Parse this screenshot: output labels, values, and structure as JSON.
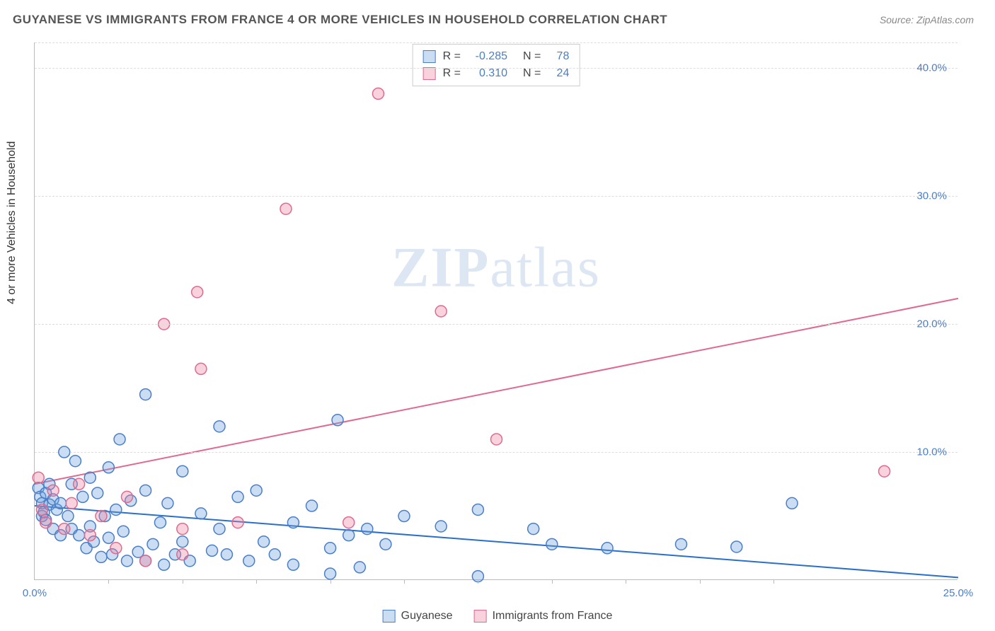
{
  "title": "GUYANESE VS IMMIGRANTS FROM FRANCE 4 OR MORE VEHICLES IN HOUSEHOLD CORRELATION CHART",
  "source": "Source: ZipAtlas.com",
  "y_axis_label": "4 or more Vehicles in Household",
  "watermark": {
    "part1": "ZIP",
    "part2": "atlas"
  },
  "chart": {
    "type": "scatter",
    "background_color": "#ffffff",
    "grid_color": "#dddddd",
    "axis_color": "#bbbbbb",
    "label_color": "#4a7ec9",
    "xlim": [
      0,
      25
    ],
    "ylim": [
      0,
      42
    ],
    "x_ticks": [
      0,
      25
    ],
    "x_minor_ticks": [
      2,
      4,
      6,
      8,
      10,
      12,
      14,
      16,
      18,
      20
    ],
    "y_ticks": [
      10,
      20,
      30,
      40
    ],
    "x_tick_labels": [
      "0.0%",
      "25.0%"
    ],
    "y_tick_labels": [
      "10.0%",
      "20.0%",
      "30.0%",
      "40.0%"
    ],
    "marker_radius": 8,
    "marker_stroke_width": 1.5,
    "line_width": 2,
    "series": [
      {
        "name": "Guyanese",
        "fill": "rgba(106,158,218,0.35)",
        "stroke": "#4a7ec9",
        "line_color": "#2a6fc9",
        "R": -0.285,
        "N": 78,
        "trend": {
          "x1": 0,
          "y1": 5.8,
          "x2": 25,
          "y2": 0.2
        },
        "points": [
          [
            0.1,
            7.2
          ],
          [
            0.15,
            6.5
          ],
          [
            0.2,
            6.0
          ],
          [
            0.2,
            5.0
          ],
          [
            0.25,
            5.3
          ],
          [
            0.3,
            6.8
          ],
          [
            0.3,
            4.7
          ],
          [
            0.4,
            7.5
          ],
          [
            0.4,
            5.9
          ],
          [
            0.5,
            6.3
          ],
          [
            0.5,
            4.0
          ],
          [
            0.6,
            5.5
          ],
          [
            0.7,
            6.0
          ],
          [
            0.7,
            3.5
          ],
          [
            0.8,
            10.0
          ],
          [
            0.9,
            5.0
          ],
          [
            1.0,
            7.5
          ],
          [
            1.0,
            4.0
          ],
          [
            1.1,
            9.3
          ],
          [
            1.2,
            3.5
          ],
          [
            1.3,
            6.5
          ],
          [
            1.4,
            2.5
          ],
          [
            1.5,
            8.0
          ],
          [
            1.5,
            4.2
          ],
          [
            1.6,
            3.0
          ],
          [
            1.7,
            6.8
          ],
          [
            1.8,
            1.8
          ],
          [
            1.9,
            5.0
          ],
          [
            2.0,
            8.8
          ],
          [
            2.0,
            3.3
          ],
          [
            2.1,
            2.0
          ],
          [
            2.2,
            5.5
          ],
          [
            2.3,
            11.0
          ],
          [
            2.4,
            3.8
          ],
          [
            2.5,
            1.5
          ],
          [
            2.6,
            6.2
          ],
          [
            2.8,
            2.2
          ],
          [
            3.0,
            7.0
          ],
          [
            3.0,
            14.5
          ],
          [
            3.2,
            2.8
          ],
          [
            3.4,
            4.5
          ],
          [
            3.5,
            1.2
          ],
          [
            3.6,
            6.0
          ],
          [
            3.8,
            2.0
          ],
          [
            4.0,
            8.5
          ],
          [
            4.0,
            3.0
          ],
          [
            4.2,
            1.5
          ],
          [
            4.5,
            5.2
          ],
          [
            4.8,
            2.3
          ],
          [
            5.0,
            12.0
          ],
          [
            5.0,
            4.0
          ],
          [
            5.2,
            2.0
          ],
          [
            5.5,
            6.5
          ],
          [
            5.8,
            1.5
          ],
          [
            6.0,
            7.0
          ],
          [
            6.2,
            3.0
          ],
          [
            6.5,
            2.0
          ],
          [
            7.0,
            4.5
          ],
          [
            7.0,
            1.2
          ],
          [
            7.5,
            5.8
          ],
          [
            8.0,
            2.5
          ],
          [
            8.2,
            12.5
          ],
          [
            8.5,
            3.5
          ],
          [
            8.8,
            1.0
          ],
          [
            9.0,
            4.0
          ],
          [
            9.5,
            2.8
          ],
          [
            10.0,
            5.0
          ],
          [
            11.0,
            4.2
          ],
          [
            12.0,
            5.5
          ],
          [
            13.5,
            4.0
          ],
          [
            14.0,
            2.8
          ],
          [
            15.5,
            2.5
          ],
          [
            17.5,
            2.8
          ],
          [
            19.0,
            2.6
          ],
          [
            20.5,
            6.0
          ],
          [
            8.0,
            0.5
          ],
          [
            12.0,
            0.3
          ],
          [
            3.0,
            1.5
          ]
        ]
      },
      {
        "name": "Immigrants from France",
        "fill": "rgba(236,128,158,0.35)",
        "stroke": "#e06a8f",
        "line_color": "#e06a8f",
        "R": 0.31,
        "N": 24,
        "trend": {
          "x1": 0,
          "y1": 7.5,
          "x2": 25,
          "y2": 22.0
        },
        "points": [
          [
            0.1,
            8.0
          ],
          [
            0.2,
            5.5
          ],
          [
            0.3,
            4.5
          ],
          [
            0.5,
            7.0
          ],
          [
            0.8,
            4.0
          ],
          [
            1.0,
            6.0
          ],
          [
            1.2,
            7.5
          ],
          [
            1.5,
            3.5
          ],
          [
            1.8,
            5.0
          ],
          [
            2.2,
            2.5
          ],
          [
            2.5,
            6.5
          ],
          [
            3.0,
            1.5
          ],
          [
            3.5,
            20.0
          ],
          [
            4.0,
            4.0
          ],
          [
            4.4,
            22.5
          ],
          [
            4.5,
            16.5
          ],
          [
            5.5,
            4.5
          ],
          [
            6.8,
            29.0
          ],
          [
            8.5,
            4.5
          ],
          [
            9.3,
            38.0
          ],
          [
            11.0,
            21.0
          ],
          [
            12.5,
            11.0
          ],
          [
            23.0,
            8.5
          ],
          [
            4.0,
            2.0
          ]
        ]
      }
    ]
  },
  "stats_box": {
    "rows": [
      {
        "swatch": "blue",
        "r_label": "R =",
        "r_value": "-0.285",
        "n_label": "N =",
        "n_value": "78"
      },
      {
        "swatch": "pink",
        "r_label": "R =",
        "r_value": "0.310",
        "n_label": "N =",
        "n_value": "24"
      }
    ]
  },
  "legend": {
    "items": [
      {
        "swatch": "blue",
        "label": "Guyanese"
      },
      {
        "swatch": "pink",
        "label": "Immigrants from France"
      }
    ]
  }
}
